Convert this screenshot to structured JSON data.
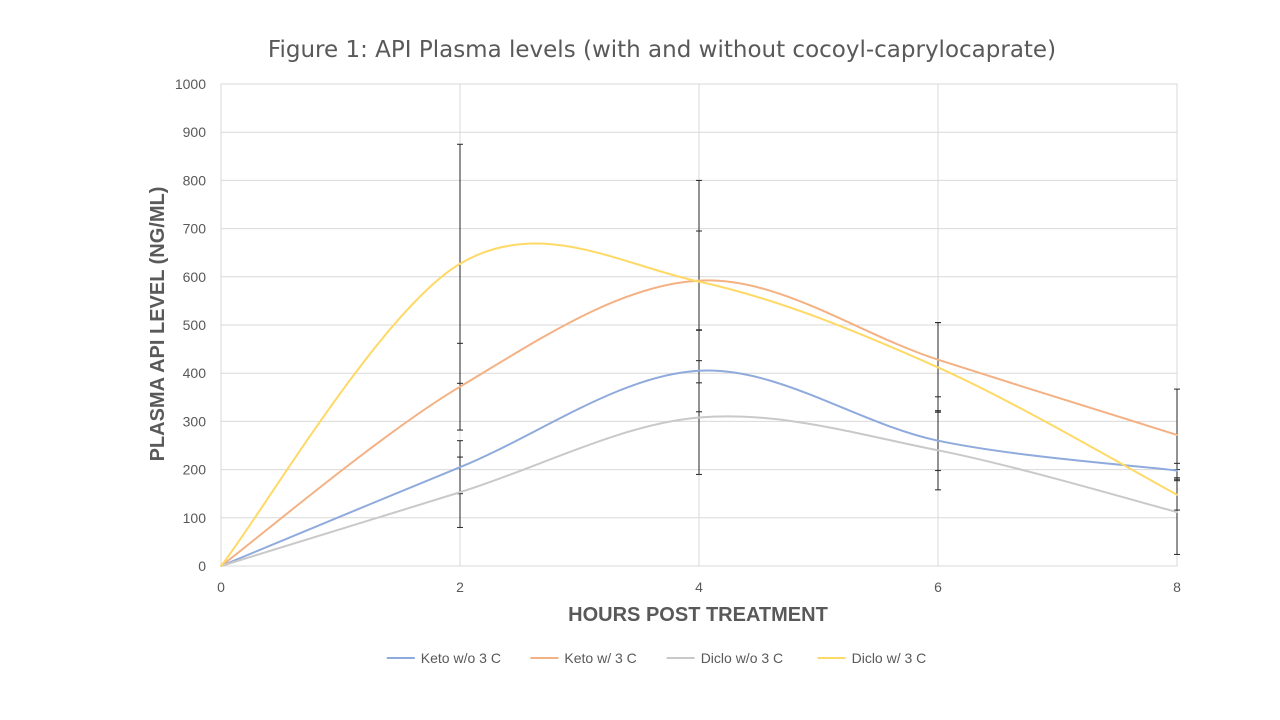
{
  "chart_data": {
    "type": "line",
    "title": "Figure 1: API Plasma levels (with and without cocoyl-caprylocaprate)",
    "xlabel": "HOURS POST TREATMENT",
    "ylabel": "PLASMA API LEVEL (NG/ML)",
    "x": [
      0,
      2,
      4,
      6,
      8
    ],
    "x_ticks": [
      "0",
      "2",
      "4",
      "6",
      "8"
    ],
    "y_ticks": [
      "0",
      "100",
      "200",
      "300",
      "400",
      "500",
      "600",
      "700",
      "800",
      "900",
      "1000"
    ],
    "xlim": [
      0,
      8
    ],
    "ylim": [
      0,
      1000
    ],
    "grid": true,
    "smoothed": true,
    "legend_position": "bottom",
    "series": [
      {
        "name": "Keto w/o 3 C",
        "color": "#8faadc",
        "values": [
          0,
          205,
          405,
          260,
          198
        ],
        "error": [
          0,
          55,
          85,
          62,
          15
        ]
      },
      {
        "name": "Keto w/ 3 C",
        "color": "#f4b183",
        "values": [
          0,
          372,
          592,
          428,
          272
        ],
        "error": [
          0,
          90,
          103,
          77,
          95
        ]
      },
      {
        "name": "Diclo w/o 3 C",
        "color": "#c9c9c9",
        "values": [
          0,
          153,
          308,
          240,
          112
        ],
        "error": [
          0,
          73,
          118,
          82,
          88
        ]
      },
      {
        "name": "Diclo w/ 3 C",
        "color": "#ffd966",
        "values": [
          0,
          627,
          590,
          412,
          148
        ],
        "error": [
          0,
          248,
          210,
          93,
          32
        ]
      }
    ]
  }
}
